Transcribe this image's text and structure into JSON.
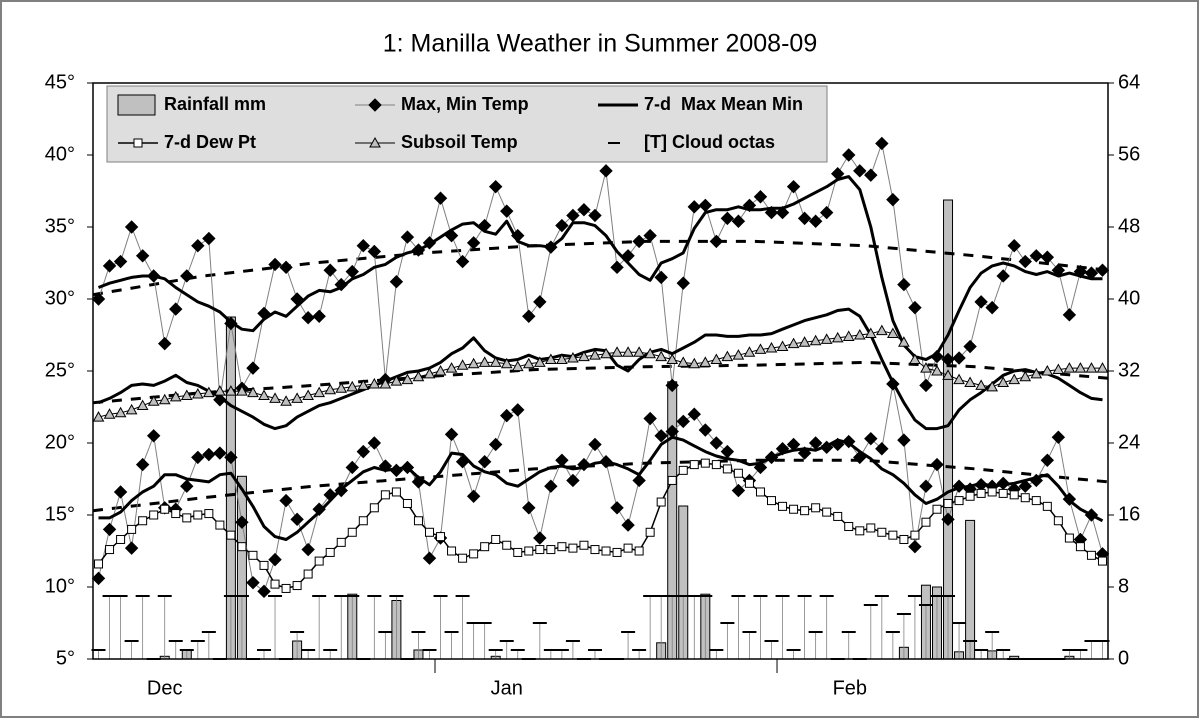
{
  "chart_data": {
    "type": "combo",
    "title": "1: Manilla Weather in Summer 2008-09",
    "legend": "upper left",
    "x": [
      0.5,
      1.5,
      2.5,
      3.5,
      4.5,
      5.5,
      6.5,
      7.5,
      8.5,
      9.5,
      10.5,
      11.5,
      12.5,
      13.5,
      14.5,
      15.5,
      16.5,
      17.5,
      18.5,
      19.5,
      20.5,
      21.5,
      22.5,
      23.5,
      24.5,
      25.5,
      26.5,
      27.5,
      28.5,
      29.5,
      30.5,
      31.5,
      32.5,
      33.5,
      34.5,
      35.5,
      36.5,
      37.5,
      38.5,
      39.5,
      40.5,
      41.5,
      42.5,
      43.5,
      44.5,
      45.5,
      46.5,
      47.5,
      48.5,
      49.5,
      50.5,
      51.5,
      52.5,
      53.5,
      54.5,
      55.5,
      56.5,
      57.5,
      58.5,
      59.5,
      60.5,
      61.5,
      62.5,
      63.5,
      64.5,
      65.5,
      66.5,
      67.5,
      68.5,
      69.5,
      70.5,
      71.5,
      72.5,
      73.5,
      74.5,
      75.5,
      76.5,
      77.5,
      78.5,
      79.5,
      80.5,
      81.5,
      82.5,
      83.5,
      84.5,
      85.5,
      86.5,
      87.5,
      88.5,
      89.5,
      90.5,
      91.5
    ],
    "xlim": [
      0,
      92
    ],
    "xticks": [
      {
        "value": 6.5,
        "label": "Dec"
      },
      {
        "value": 37.5,
        "label": "Jan"
      },
      {
        "value": 68.6,
        "label": "Feb"
      }
    ],
    "x_dividers": [
      31,
      62
    ],
    "ylim": [
      5,
      45
    ],
    "yticks": [
      {
        "value": 5,
        "label": "5°"
      },
      {
        "value": 10,
        "label": "10°"
      },
      {
        "value": 15,
        "label": "15°"
      },
      {
        "value": 20,
        "label": "20°"
      },
      {
        "value": 25,
        "label": "25°"
      },
      {
        "value": 30,
        "label": "30°"
      },
      {
        "value": 35,
        "label": "35°"
      },
      {
        "value": 40,
        "label": "40°"
      },
      {
        "value": 45,
        "label": "45°"
      }
    ],
    "y2lim": [
      0,
      64
    ],
    "y2ticks": [
      0,
      8,
      16,
      24,
      32,
      40,
      48,
      56,
      64
    ],
    "series": [
      {
        "name": "Rainfall mm",
        "type": "bar",
        "axis": "y2",
        "color": "#c0c0c0",
        "values": [
          0,
          0,
          0,
          0,
          0,
          0,
          0.3,
          0,
          1,
          0,
          0,
          0,
          38,
          20.3,
          0,
          0,
          0,
          0,
          2,
          0,
          0,
          0,
          0,
          7.2,
          0,
          0,
          0,
          6.5,
          0,
          1,
          0,
          0,
          0,
          0,
          0,
          0,
          0.3,
          0,
          0,
          0,
          0,
          0,
          0,
          0,
          0,
          0,
          0,
          0,
          0,
          0,
          0,
          1.8,
          30.8,
          17,
          0,
          7.2,
          0,
          0,
          0,
          0,
          0,
          0,
          0,
          0,
          0,
          0,
          0,
          0,
          0,
          0,
          0,
          0,
          0,
          1.3,
          0,
          8.2,
          8,
          51,
          0.8,
          15.4,
          0,
          0.9,
          0,
          0.3,
          0,
          0,
          0,
          0,
          0.3,
          0,
          0,
          0
        ]
      },
      {
        "name": "Max, Min Temp",
        "type": "line",
        "marker": "diamond",
        "color": "#000000",
        "line_color": "#808080",
        "line_width": 1,
        "values": [
          30.0,
          32.3,
          32.6,
          35.0,
          33.0,
          31.6,
          26.9,
          29.3,
          31.6,
          33.7,
          34.2,
          23.0,
          28.3,
          23.8,
          25.2,
          29.0,
          32.4,
          32.2,
          30.0,
          28.7,
          28.8,
          32.0,
          31.0,
          31.9,
          33.7,
          33.3,
          24.4,
          31.2,
          34.3,
          33.4,
          33.9,
          37.0,
          34.4,
          32.6,
          33.9,
          35.1,
          37.8,
          36.1,
          34.4,
          28.8,
          29.8,
          33.6,
          35.1,
          35.8,
          36.2,
          35.8,
          38.9,
          32.2,
          33.0,
          34.0,
          34.4,
          31.5,
          24.0,
          31.1,
          36.4,
          36.5,
          34.0,
          35.6,
          35.4,
          36.5,
          37.1,
          36.0,
          36.0,
          37.8,
          35.6,
          35.4,
          36.0,
          38.7,
          40.0,
          38.9,
          38.6,
          40.8,
          36.9,
          31.0,
          29.4,
          24.0,
          26.0,
          25.8,
          25.9,
          26.7,
          29.8,
          29.4,
          31.6,
          33.7,
          32.6,
          33.0,
          32.9,
          32.0,
          28.9,
          31.9,
          31.8,
          32.0
        ]
      },
      {
        "type": "line",
        "marker": "diamond",
        "color": "#000000",
        "line_color": "#808080",
        "line_width": 1,
        "values": [
          10.6,
          14.0,
          16.6,
          12.7,
          18.5,
          20.5,
          15.5,
          15.4,
          17.0,
          19.0,
          19.2,
          19.3,
          19.0,
          14.5,
          10.3,
          9.7,
          11.9,
          16.0,
          14.7,
          12.6,
          15.4,
          16.4,
          16.7,
          18.3,
          19.4,
          20.0,
          18.4,
          18.1,
          18.3,
          17.3,
          12.0,
          13.4,
          20.6,
          18.7,
          16.3,
          18.7,
          19.9,
          21.9,
          22.3,
          15.5,
          13.4,
          17.0,
          18.8,
          17.4,
          18.5,
          19.9,
          18.7,
          15.5,
          14.3,
          17.4,
          21.7,
          20.5,
          20.8,
          21.5,
          22.0,
          20.9,
          20.0,
          19.4,
          16.7,
          17.4,
          18.3,
          19.0,
          19.6,
          19.9,
          19.3,
          20.0,
          19.7,
          19.9,
          20.1,
          19.0,
          20.3,
          19.6,
          24.1,
          20.2,
          12.8,
          17.0,
          18.5,
          14.7,
          17.0,
          16.8,
          17.1,
          17.0,
          17.2,
          16.8,
          17.0,
          17.4,
          18.8,
          20.4,
          16.1,
          13.3,
          15.0,
          12.3
        ]
      },
      {
        "name": "7-d  Max Mean Min",
        "type": "line",
        "color": "#000000",
        "line_color": "#000000",
        "line_width": 3,
        "values": [
          30.8,
          31.1,
          31.3,
          31.5,
          31.6,
          31.6,
          31.4,
          30.8,
          30.3,
          29.8,
          29.5,
          29.1,
          28.4,
          27.9,
          27.8,
          28.6,
          29.1,
          28.8,
          29.5,
          30.2,
          30.6,
          30.5,
          30.8,
          31.4,
          31.7,
          32.2,
          32.4,
          32.9,
          33.2,
          33.4,
          33.8,
          34.3,
          34.8,
          35.2,
          35.3,
          34.7,
          34.5,
          35.4,
          34.0,
          33.7,
          33.7,
          33.6,
          34.2,
          35.3,
          35.3,
          35.1,
          34.4,
          33.3,
          32.5,
          31.7,
          31.3,
          32.5,
          32.8,
          33.2,
          34.9,
          36.0,
          36.2,
          36.2,
          36.4,
          36.2,
          36.2,
          36.3,
          36.3,
          36.6,
          37.0,
          37.4,
          37.8,
          38.3,
          38.5,
          37.6,
          35.0,
          31.5,
          28.5,
          26.8,
          26.0,
          25.8,
          26.2,
          27.5,
          29.2,
          30.8,
          31.8,
          32.3,
          32.5,
          32.3,
          31.9,
          31.7,
          31.9,
          31.6,
          31.8,
          31.6,
          31.4,
          31.4
        ]
      },
      {
        "type": "line",
        "color": "#000000",
        "line_color": "#000000",
        "line_width": 3,
        "values": [
          22.8,
          23.1,
          23.5,
          24.0,
          24.1,
          24.0,
          24.3,
          24.7,
          24.2,
          24.0,
          23.6,
          23.2,
          22.6,
          22.2,
          21.8,
          21.3,
          21.0,
          21.2,
          21.8,
          22.2,
          22.6,
          22.8,
          23.1,
          23.4,
          23.7,
          24.0,
          24.3,
          24.6,
          24.9,
          25.0,
          25.2,
          25.6,
          26.2,
          26.6,
          27.3,
          26.4,
          25.9,
          25.7,
          25.8,
          26.1,
          25.8,
          25.9,
          26.1,
          26.0,
          26.3,
          26.5,
          26.4,
          25.4,
          25.0,
          25.8,
          26.3,
          26.5,
          26.2,
          26.6,
          27.0,
          27.5,
          27.5,
          27.4,
          27.4,
          27.5,
          27.5,
          27.6,
          27.9,
          28.2,
          28.5,
          28.7,
          28.9,
          29.2,
          29.3,
          28.8,
          27.5,
          25.8,
          24.2,
          22.8,
          21.6,
          21.0,
          21.0,
          21.2,
          22.3,
          23.0,
          23.5,
          24.1,
          24.7,
          25.0,
          25.1,
          24.9,
          24.8,
          24.5,
          24.0,
          23.5,
          23.1,
          23.0
        ]
      },
      {
        "type": "line",
        "color": "#000000",
        "line_color": "#000000",
        "line_width": 3,
        "values": [
          14.8,
          14.8,
          15.2,
          16.0,
          16.6,
          17.0,
          17.8,
          17.8,
          17.5,
          17.4,
          17.3,
          17.8,
          17.9,
          16.8,
          15.6,
          14.2,
          13.5,
          13.3,
          13.8,
          14.5,
          15.2,
          16.0,
          16.8,
          17.4,
          18.0,
          18.3,
          18.1,
          18.2,
          18.3,
          17.6,
          17.1,
          18.0,
          19.3,
          19.2,
          18.4,
          18.0,
          17.8,
          17.2,
          17.0,
          17.5,
          18.0,
          18.3,
          18.4,
          18.2,
          18.3,
          18.6,
          18.7,
          18.5,
          18.2,
          17.8,
          18.8,
          19.9,
          20.4,
          20.2,
          19.8,
          19.4,
          19.1,
          18.9,
          18.8,
          18.5,
          18.6,
          19.0,
          19.3,
          19.5,
          19.6,
          19.5,
          19.8,
          20.2,
          20.0,
          19.4,
          18.9,
          18.2,
          17.8,
          17.2,
          16.4,
          15.8,
          16.1,
          16.6,
          16.9,
          17.0,
          17.2,
          17.0,
          17.1,
          17.2,
          17.4,
          17.6,
          17.8,
          17.0,
          16.0,
          15.4,
          15.0,
          14.6
        ]
      },
      {
        "name": "7-d Dew Pt",
        "type": "line",
        "marker": "square",
        "color": "#000000",
        "marker_fill": "#ffffff",
        "line_color": "#000000",
        "line_width": 1.5,
        "values": [
          11.6,
          12.6,
          13.3,
          14.0,
          14.6,
          15.0,
          15.4,
          15.1,
          14.8,
          15.0,
          15.1,
          14.3,
          13.6,
          12.8,
          12.2,
          11.5,
          10.2,
          9.9,
          10.1,
          10.9,
          11.8,
          12.4,
          13.1,
          13.8,
          14.6,
          15.5,
          16.4,
          16.6,
          15.8,
          14.6,
          13.8,
          13.5,
          12.5,
          12.0,
          12.3,
          12.8,
          13.3,
          12.9,
          12.4,
          12.5,
          12.6,
          12.6,
          12.8,
          12.7,
          12.9,
          12.6,
          12.5,
          12.4,
          12.7,
          12.5,
          13.8,
          15.9,
          17.4,
          18.1,
          18.5,
          18.6,
          18.5,
          18.2,
          17.9,
          17.2,
          16.6,
          16.0,
          15.6,
          15.4,
          15.3,
          15.5,
          15.2,
          14.9,
          14.2,
          13.9,
          14.1,
          13.8,
          13.6,
          13.3,
          13.6,
          14.5,
          15.4,
          15.8,
          16.0,
          16.3,
          16.5,
          16.6,
          16.5,
          16.4,
          16.2,
          16.0,
          15.6,
          14.6,
          13.4,
          12.8,
          12.2,
          11.8
        ]
      },
      {
        "name": "Subsoil Temp",
        "type": "line",
        "marker": "triangle",
        "color": "#000000",
        "marker_fill": "#c0c0c0",
        "line_color": "#000000",
        "line_width": 1,
        "values": [
          21.8,
          22.0,
          22.1,
          22.3,
          22.6,
          22.9,
          23.0,
          23.2,
          23.3,
          23.4,
          23.5,
          23.6,
          23.6,
          23.6,
          23.5,
          23.3,
          23.1,
          22.9,
          23.1,
          23.3,
          23.5,
          23.7,
          23.8,
          23.9,
          24.0,
          24.1,
          24.1,
          24.3,
          24.4,
          24.6,
          24.8,
          25.0,
          25.2,
          25.4,
          25.5,
          25.6,
          25.6,
          25.5,
          25.3,
          25.5,
          25.6,
          25.8,
          25.8,
          25.9,
          26.0,
          26.1,
          26.2,
          26.3,
          26.3,
          26.3,
          26.2,
          26.0,
          25.8,
          25.6,
          25.5,
          25.6,
          25.8,
          26.0,
          26.1,
          26.3,
          26.5,
          26.6,
          26.7,
          26.9,
          27.0,
          27.1,
          27.2,
          27.3,
          27.4,
          27.5,
          27.6,
          27.8,
          27.6,
          27.0,
          25.8,
          25.2,
          25.0,
          24.7,
          24.4,
          24.2,
          24.0,
          23.9,
          24.2,
          24.4,
          24.6,
          24.8,
          25.0,
          25.1,
          25.2,
          25.2,
          25.2,
          25.2
        ]
      },
      {
        "name": "[T] Cloud octas",
        "type": "dash",
        "axis": "y2",
        "color": "#000000",
        "line_color": "#808080",
        "values": [
          1,
          7,
          7,
          2,
          7,
          0,
          7,
          2,
          1,
          2,
          3,
          0,
          7,
          7,
          0,
          1,
          7,
          0,
          3,
          1,
          7,
          1,
          7,
          7,
          0,
          7,
          3,
          7,
          0,
          3,
          1,
          7,
          3,
          7,
          4,
          4,
          1,
          2,
          1,
          0,
          4,
          1,
          1,
          2,
          0,
          1,
          0,
          0,
          3,
          1,
          7,
          7,
          7,
          7,
          7,
          7,
          1,
          4,
          7,
          3,
          7,
          2,
          7,
          1,
          7,
          3,
          7,
          0,
          3,
          0,
          6,
          7,
          3,
          5,
          7,
          6,
          7,
          7,
          4,
          2,
          1,
          3,
          1,
          0,
          0,
          0,
          0,
          0,
          1,
          1,
          2,
          2
        ]
      },
      {
        "type": "dashed-line",
        "color": "#000000",
        "line_width": 3,
        "x": [
          0,
          10,
          20,
          30,
          40,
          50,
          60,
          70,
          80,
          92
        ],
        "values": [
          30.3,
          31.6,
          32.5,
          33.2,
          33.7,
          34.0,
          34.0,
          33.7,
          33.0,
          32.0
        ]
      },
      {
        "type": "dashed-line",
        "color": "#000000",
        "line_width": 3,
        "x": [
          0,
          10,
          20,
          30,
          40,
          50,
          60,
          70,
          80,
          92
        ],
        "values": [
          22.8,
          23.5,
          24.0,
          24.6,
          25.1,
          25.3,
          25.4,
          25.6,
          25.3,
          24.5
        ]
      },
      {
        "type": "dashed-line",
        "color": "#000000",
        "line_width": 3,
        "x": [
          0,
          10,
          20,
          30,
          40,
          50,
          60,
          70,
          80,
          92
        ],
        "values": [
          15.3,
          16.2,
          17.0,
          17.6,
          18.2,
          18.6,
          18.8,
          18.8,
          18.2,
          17.3
        ]
      }
    ]
  }
}
